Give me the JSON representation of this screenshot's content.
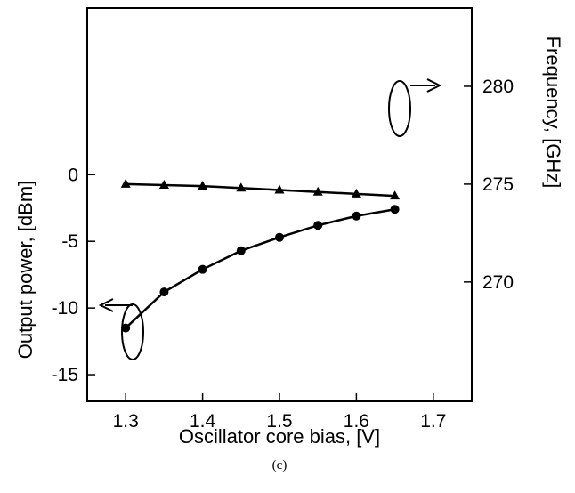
{
  "chart_data": {
    "type": "line",
    "title": "",
    "caption": "(c)",
    "xlabel": "Oscillator core bias, [V]",
    "ylabel": "Output power, [dBm]",
    "y2label": "Frequency, [GHz]",
    "xlim": [
      1.25,
      1.75
    ],
    "ylim": [
      -17,
      12.5
    ],
    "y2lim": [
      263.9,
      284.0
    ],
    "x_ticks": [
      "1.3",
      "1.4",
      "1.5",
      "1.6",
      "1.7"
    ],
    "y_ticks": [
      "0",
      "-5",
      "-10",
      "-15"
    ],
    "y2_ticks": [
      "280",
      "275",
      "270"
    ],
    "grid": false,
    "legend": "none",
    "series": [
      {
        "axis": "left",
        "marker": "circle",
        "x": [
          1.3,
          1.35,
          1.4,
          1.45,
          1.5,
          1.55,
          1.6,
          1.65
        ],
        "values": [
          -11.5,
          -8.8,
          -7.1,
          -5.7,
          -4.7,
          -3.8,
          -3.1,
          -2.6
        ]
      },
      {
        "axis": "right",
        "marker": "triangle",
        "x": [
          1.3,
          1.35,
          1.4,
          1.45,
          1.5,
          1.55,
          1.6,
          1.65
        ],
        "values": [
          275.0,
          274.95,
          274.9,
          274.8,
          274.7,
          274.6,
          274.5,
          274.4
        ]
      }
    ],
    "colors": {
      "line": "#000000",
      "background": "#ffffff"
    }
  }
}
